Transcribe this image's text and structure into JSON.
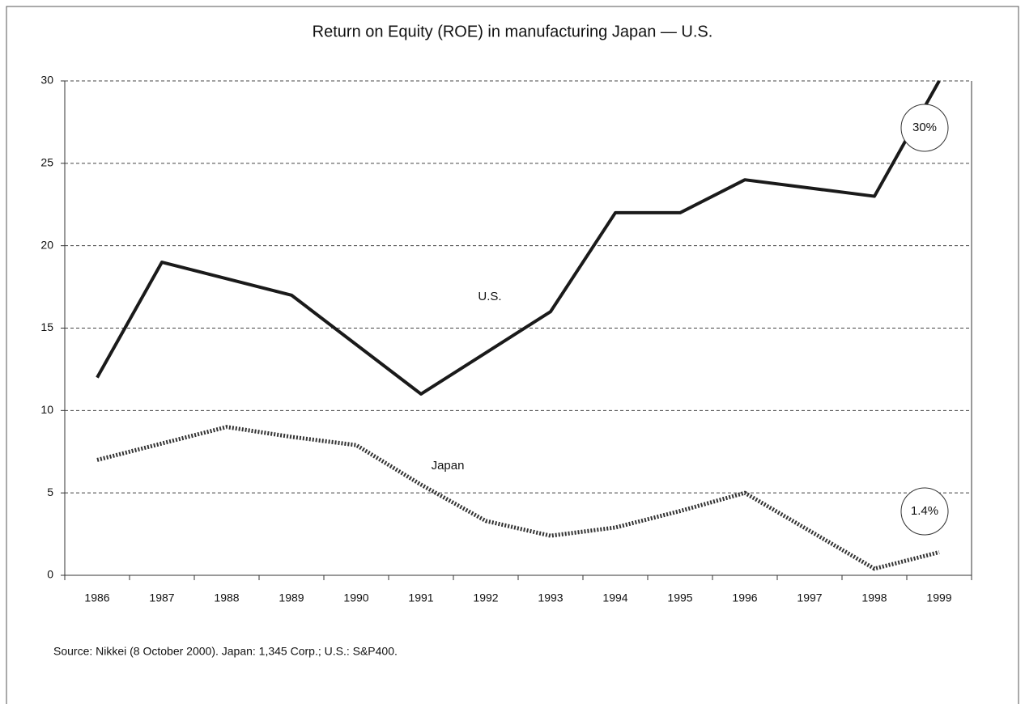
{
  "chart_data": {
    "type": "line",
    "title": "Return on Equity (ROE) in manufacturing Japan — U.S.",
    "categories": [
      "1986",
      "1987",
      "1988",
      "1989",
      "1990",
      "1991",
      "1992",
      "1993",
      "1994",
      "1995",
      "1996",
      "1997",
      "1998",
      "1999"
    ],
    "series": [
      {
        "name": "U.S.",
        "color": "#1a1a1a",
        "dash": "solid",
        "values": [
          12,
          19,
          18,
          17,
          14,
          11,
          13.5,
          16,
          22,
          22,
          24,
          23.5,
          23,
          30
        ]
      },
      {
        "name": "Japan",
        "color": "#333333",
        "dash": "dotted",
        "values": [
          7,
          8,
          9,
          8.4,
          7.9,
          5.5,
          3.3,
          2.4,
          2.9,
          3.9,
          5,
          2.7,
          0.4,
          1.4
        ]
      }
    ],
    "annotations": [
      "30%",
      "1.4%"
    ],
    "ylim": [
      0,
      30
    ],
    "yticks": [
      0,
      5,
      10,
      15,
      20,
      25,
      30
    ],
    "grid": true,
    "source": "Source: Nikkei (8 October 2000). Japan: 1,345 Corp.; U.S.: S&P400."
  }
}
